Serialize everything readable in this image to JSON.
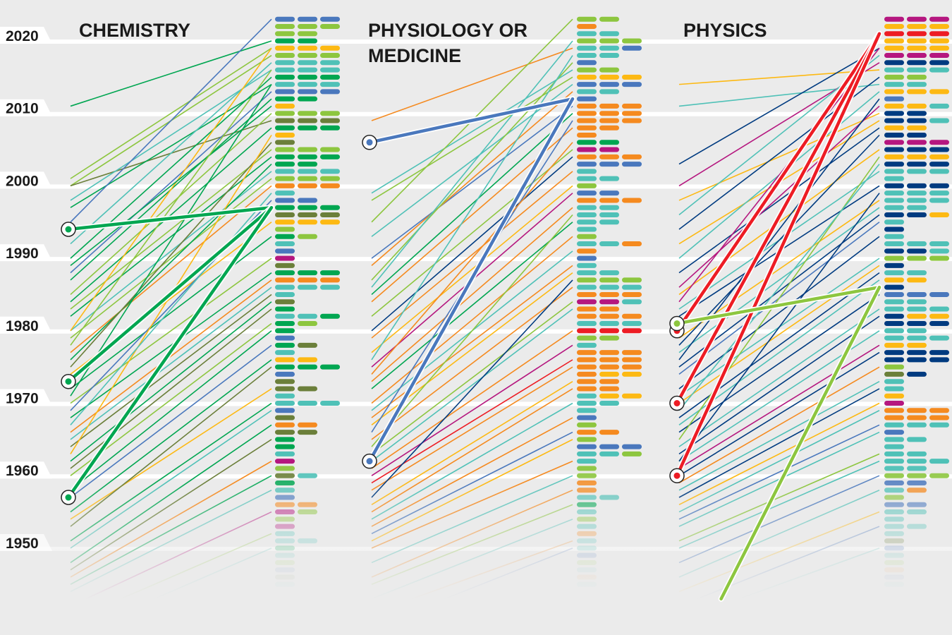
{
  "chart_data": {
    "type": "line",
    "y_axis": {
      "ticks": [
        "2020",
        "2010",
        "2000",
        "1990",
        "1980",
        "1970",
        "1960",
        "1950"
      ],
      "range": [
        1945,
        2023
      ]
    },
    "grid": true,
    "palette": {
      "B": "#4a78bd",
      "L": "#8dc63f",
      "G": "#00a651",
      "Y": "#fdb913",
      "T": "#4fc1b7",
      "O": "#6b7f3a",
      "R": "#f58a1f",
      "M": "#b5177f",
      "N": "#003b80",
      "D": "#ed1c24"
    },
    "panels": [
      {
        "title_lines": [
          "CHEMISTRY"
        ],
        "laureates_from_2023": [
          "BBB",
          "LLL",
          "LL",
          "GG",
          "YYY",
          "LLL",
          "TTT",
          "TTT",
          "GGG",
          "TTT",
          "BBB",
          "GG",
          "Y",
          "LLL",
          "OOO",
          "GGG",
          "Y",
          "O",
          "LLL",
          "GGG",
          "GG",
          "TTT",
          "LLL",
          "RRR",
          "T",
          "BB",
          "GGG",
          "OOO",
          "YYY",
          "L",
          "GL",
          "T",
          "B",
          "M",
          "O",
          "GGG",
          "RRR",
          "TTT",
          "T",
          "O",
          "G",
          "TTG",
          "GL",
          "G",
          "B",
          "GO",
          "T",
          "YY",
          "GGG",
          "B",
          "O",
          "OO",
          "T",
          "TTT",
          "B",
          "O",
          "RR",
          "OO",
          "G",
          "G",
          "T",
          "M",
          "L",
          "OT",
          "G",
          "T",
          "B",
          "RR",
          "ML",
          "L",
          "M",
          "T",
          "TT",
          "G",
          "T",
          "L",
          "B",
          "O",
          "T"
        ],
        "lines": [
          [
            2011,
            2020,
            "G"
          ],
          [
            2001,
            2019,
            "L"
          ],
          [
            2000,
            2018,
            "L"
          ],
          [
            2000,
            2009,
            "O"
          ],
          [
            1998,
            2016,
            "T"
          ],
          [
            1997,
            2014,
            "G"
          ],
          [
            1995,
            2023,
            "B"
          ],
          [
            1992,
            2017,
            "T"
          ],
          [
            1990,
            2015,
            "G"
          ],
          [
            1988,
            2013,
            "B"
          ],
          [
            1987,
            2012,
            "G"
          ],
          [
            1985,
            2010,
            "L"
          ],
          [
            1984,
            2008,
            "G"
          ],
          [
            1983,
            2005,
            "L"
          ],
          [
            1982,
            2004,
            "G"
          ],
          [
            1980,
            2002,
            "T"
          ],
          [
            1980,
            2019,
            "Y"
          ],
          [
            1979,
            2001,
            "L"
          ],
          [
            1977,
            2000,
            "R"
          ],
          [
            1976,
            2003,
            "G"
          ],
          [
            1975,
            2006,
            "O"
          ],
          [
            1974,
            1995,
            "Y"
          ],
          [
            1972,
            1993,
            "G"
          ],
          [
            1970,
            1990,
            "L"
          ],
          [
            1969,
            1998,
            "B"
          ],
          [
            1968,
            1988,
            "G"
          ],
          [
            1966,
            1987,
            "R"
          ],
          [
            1965,
            1986,
            "T"
          ],
          [
            1964,
            1985,
            "O"
          ],
          [
            1963,
            2007,
            "Y"
          ],
          [
            1962,
            1984,
            "G"
          ],
          [
            1961,
            1983,
            "O"
          ],
          [
            1960,
            1981,
            "L"
          ],
          [
            1958,
            1980,
            "G"
          ],
          [
            1957,
            1978,
            "B"
          ],
          [
            1955,
            1976,
            "G"
          ],
          [
            1954,
            1972,
            "Y"
          ],
          [
            1953,
            1975,
            "O"
          ],
          [
            1951,
            1970,
            "G"
          ],
          [
            1950,
            1969,
            "T"
          ],
          [
            1948,
            1967,
            "G"
          ],
          [
            1947,
            1965,
            "O"
          ],
          [
            1946,
            1962,
            "R"
          ],
          [
            1945,
            1960,
            "G"
          ],
          [
            1944,
            1958,
            "T"
          ],
          [
            1942,
            1955,
            "M"
          ],
          [
            1940,
            1952,
            "L"
          ],
          [
            1938,
            1950,
            "T"
          ],
          [
            1989,
            2011,
            "G"
          ],
          [
            1978,
            2016,
            "L"
          ],
          [
            1971,
            2014,
            "G"
          ],
          [
            1967,
            1999,
            "T"
          ]
        ],
        "highlight": {
          "color": "G",
          "lines": [
            [
              1994,
              1997
            ],
            [
              1973,
              1997
            ],
            [
              1957,
              1997
            ]
          ]
        }
      },
      {
        "title_lines": [
          "PHYSIOLOGY OR",
          "MEDICINE"
        ],
        "laureates_from_2023": [
          "LL",
          "R",
          "TT",
          "LLL",
          "TTB",
          "TT",
          "B",
          "LL",
          "YYY",
          "BBB",
          "TT",
          "B",
          "RRR",
          "RRR",
          "RRR",
          "RR",
          "R",
          "GG",
          "MM",
          "RRR",
          "BBB",
          "T",
          "TT",
          "L",
          "BB",
          "RRR",
          "TT",
          "TT",
          "TT",
          "T",
          "L",
          "TTR",
          "R",
          "B",
          "T",
          "TT",
          "LLL",
          "TTT",
          "RRR",
          "MMT",
          "RR",
          "RRR",
          "TTT",
          "DDD",
          "LL",
          "T",
          "RRR",
          "RRR",
          "RRR",
          "RYY",
          "RR",
          "RR",
          "TYY",
          "TT",
          "T",
          "B",
          "L",
          "RR",
          "L",
          "BBB",
          "TTL",
          "T",
          "L",
          "L",
          "R",
          "R",
          "TT",
          "G",
          "T",
          "L",
          "T",
          "R",
          "T",
          "T",
          "B",
          "L",
          "T",
          "R",
          "T"
        ],
        "lines": [
          [
            2009,
            2019,
            "R"
          ],
          [
            1999,
            2016,
            "T"
          ],
          [
            1998,
            2015,
            "L"
          ],
          [
            1995,
            2023,
            "L"
          ],
          [
            1993,
            2014,
            "T"
          ],
          [
            1990,
            2011,
            "B"
          ],
          [
            1989,
            2013,
            "R"
          ],
          [
            1987,
            2017,
            "L"
          ],
          [
            1985,
            2010,
            "G"
          ],
          [
            1984,
            2008,
            "R"
          ],
          [
            1982,
            2005,
            "L"
          ],
          [
            1980,
            2004,
            "N"
          ],
          [
            1979,
            2002,
            "R"
          ],
          [
            1977,
            2000,
            "Y"
          ],
          [
            1976,
            2018,
            "T"
          ],
          [
            1975,
            1999,
            "M"
          ],
          [
            1973,
            1997,
            "R"
          ],
          [
            1972,
            1995,
            "G"
          ],
          [
            1970,
            1993,
            "R"
          ],
          [
            1969,
            1991,
            "T"
          ],
          [
            1968,
            1989,
            "R"
          ],
          [
            1967,
            1988,
            "Y"
          ],
          [
            1966,
            2009,
            "B"
          ],
          [
            1965,
            1986,
            "R"
          ],
          [
            1963,
            1984,
            "L"
          ],
          [
            1962,
            1983,
            "T"
          ],
          [
            1961,
            1980,
            "R"
          ],
          [
            1960,
            1978,
            "M"
          ],
          [
            1959,
            1976,
            "D"
          ],
          [
            1958,
            1975,
            "R"
          ],
          [
            1956,
            1973,
            "Y"
          ],
          [
            1955,
            1972,
            "R"
          ],
          [
            1954,
            1970,
            "T"
          ],
          [
            1953,
            1968,
            "R"
          ],
          [
            1952,
            1966,
            "B"
          ],
          [
            1951,
            1965,
            "Y"
          ],
          [
            1950,
            1962,
            "R"
          ],
          [
            1948,
            1960,
            "T"
          ],
          [
            1946,
            1958,
            "R"
          ],
          [
            1945,
            1956,
            "L"
          ],
          [
            1943,
            1954,
            "T"
          ],
          [
            1941,
            1951,
            "R"
          ],
          [
            1939,
            1950,
            "B"
          ],
          [
            1986,
            2020,
            "T"
          ],
          [
            1974,
            2006,
            "R"
          ],
          [
            1964,
            1996,
            "L"
          ],
          [
            1957,
            1987,
            "N"
          ]
        ],
        "highlight": {
          "color": "B",
          "lines": [
            [
              2006,
              2012
            ],
            [
              1962,
              2012
            ]
          ]
        }
      },
      {
        "title_lines": [
          "PHYSICS"
        ],
        "laureates_from_2023": [
          "MMM",
          "YYY",
          "DDD",
          "YYY",
          "YYY",
          "MMM",
          "NNN",
          "TTT",
          "LL",
          "TT",
          "YYY",
          "B",
          "YYT",
          "NN",
          "NNT",
          "YY",
          "NN",
          "MMM",
          "NNN",
          "YYY",
          "NNN",
          "TTT",
          "T",
          "NNN",
          "TTT",
          "TTT",
          "TT",
          "NNY",
          "T",
          "N",
          "T",
          "TTT",
          "NNT",
          "LLL",
          "N",
          "TT",
          "YY",
          "N",
          "BBB",
          "TT",
          "TTT",
          "NYY",
          "NNN",
          "TT",
          "TTT",
          "YY",
          "NNN",
          "NNN",
          "L",
          "ON",
          "T",
          "T",
          "Y",
          "M",
          "RRR",
          "RRR",
          "TTT",
          "B",
          "TT",
          "T",
          "TT",
          "TTT",
          "TT",
          "LLL",
          "BB",
          "TR",
          "L",
          "BB",
          "TT",
          "T",
          "TT",
          "T",
          "O",
          "B",
          "T",
          "L",
          "R",
          "B",
          "T"
        ],
        "lines": [
          [
            2014,
            2016,
            "Y"
          ],
          [
            2011,
            2014,
            "T"
          ],
          [
            2003,
            2019,
            "N"
          ],
          [
            2000,
            2017,
            "M"
          ],
          [
            1998,
            2010,
            "Y"
          ],
          [
            1996,
            2018,
            "T"
          ],
          [
            1994,
            2015,
            "N"
          ],
          [
            1992,
            2009,
            "Y"
          ],
          [
            1990,
            2013,
            "T"
          ],
          [
            1988,
            2008,
            "N"
          ],
          [
            1986,
            2011,
            "M"
          ],
          [
            1985,
            2005,
            "Y"
          ],
          [
            1983,
            2002,
            "T"
          ],
          [
            1982,
            2000,
            "N"
          ],
          [
            1979,
            1998,
            "Y"
          ],
          [
            1978,
            2007,
            "N"
          ],
          [
            1977,
            1997,
            "T"
          ],
          [
            1975,
            1996,
            "N"
          ],
          [
            1974,
            1995,
            "B"
          ],
          [
            1972,
            1993,
            "N"
          ],
          [
            1971,
            1990,
            "T"
          ],
          [
            1970,
            1989,
            "Y"
          ],
          [
            1968,
            1988,
            "N"
          ],
          [
            1967,
            1987,
            "T"
          ],
          [
            1966,
            1985,
            "N"
          ],
          [
            1965,
            2004,
            "L"
          ],
          [
            1964,
            1983,
            "T"
          ],
          [
            1963,
            1982,
            "N"
          ],
          [
            1962,
            1980,
            "T"
          ],
          [
            1961,
            1978,
            "M"
          ],
          [
            1960,
            1977,
            "N"
          ],
          [
            1959,
            1975,
            "R"
          ],
          [
            1958,
            1973,
            "T"
          ],
          [
            1957,
            1972,
            "N"
          ],
          [
            1956,
            1970,
            "Y"
          ],
          [
            1955,
            1969,
            "T"
          ],
          [
            1954,
            1967,
            "B"
          ],
          [
            1953,
            1966,
            "T"
          ],
          [
            1951,
            1963,
            "L"
          ],
          [
            1950,
            1962,
            "T"
          ],
          [
            1948,
            1960,
            "B"
          ],
          [
            1946,
            1958,
            "T"
          ],
          [
            1944,
            1955,
            "Y"
          ],
          [
            1942,
            1953,
            "B"
          ],
          [
            1940,
            1950,
            "T"
          ],
          [
            1984,
            2019,
            "M"
          ],
          [
            1976,
            2012,
            "N"
          ],
          [
            1969,
            2003,
            "T"
          ],
          [
            1962,
            1999,
            "N"
          ]
        ],
        "highlight": {
          "color": "D",
          "lines": [
            [
              1980,
              2021
            ],
            [
              1970,
              2021
            ],
            [
              1960,
              2021
            ]
          ]
        },
        "highlight2": {
          "color": "L",
          "lines": [
            [
              1981,
              1986
            ],
            [
              1931,
              1986
            ]
          ]
        }
      }
    ]
  }
}
